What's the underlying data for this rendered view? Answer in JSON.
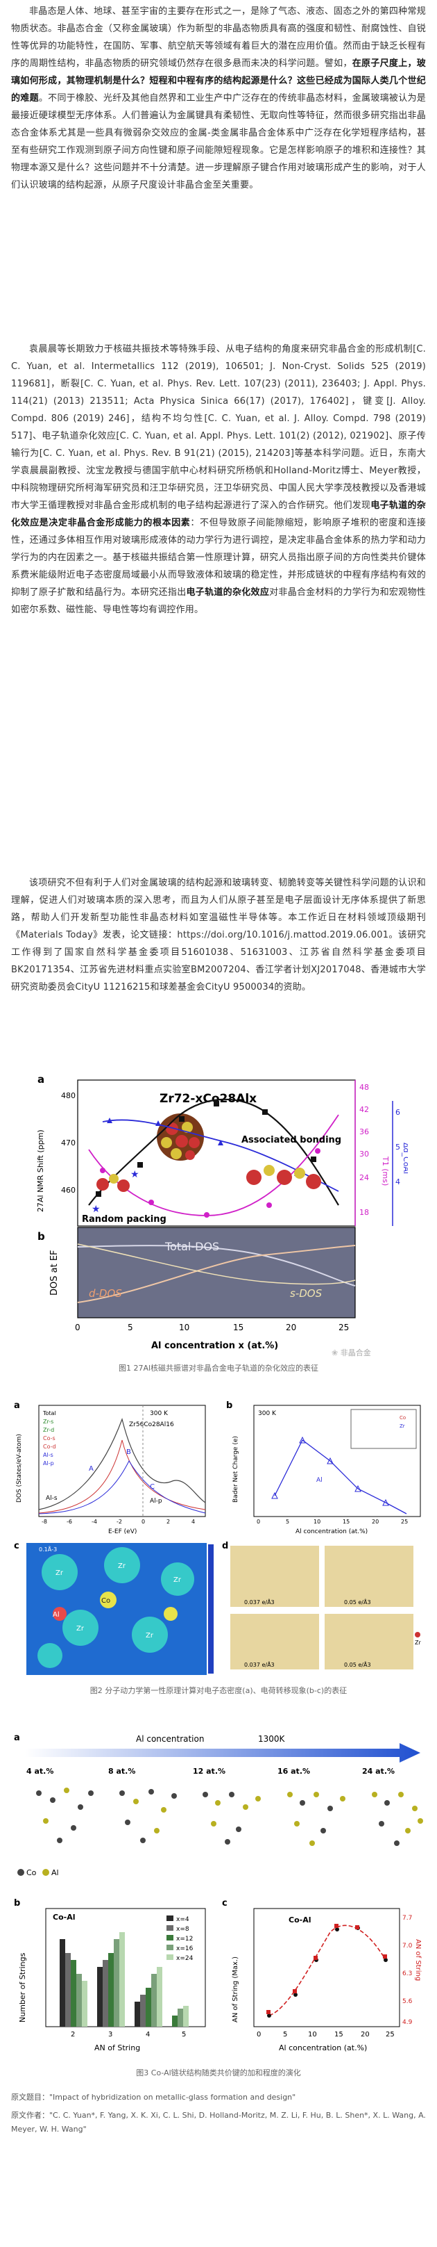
{
  "article": {
    "paragraphs": [
      [
        "非晶态是人体、地球、甚至宇宙的主要存在形式之一，是除了气态、液态、固态之外的第四种常规物质状态。非晶态合金（又称金属玻璃）作为新型的非晶态物质具有高的强度和韧性、耐腐蚀性、自锐性等优异的功能特性，在国防、军事、航空航天等领域有着巨大的潜在应用价值。然而由于缺乏长程有序的周期性结构，非晶态物质的研究领域仍然存在很多悬而未决的科学问题。譬如，",
        "在原子尺度上，玻璃如何形成，其物理机制是什么？短程和中程有序的结构起源是什么？这些已经成为国际人类几个世纪的难题",
        "。不同于橡胶、光纤及其他自然界和工业生产中广泛存在的传统非晶态材料，金属玻璃被认为是最接近硬球模型无序体系。人们普遍认为金属键具有柔韧性、无取向性等特征，然而很多研究指出非晶态合金体系尤其是一些具有微弱杂交效应的金属-类金属非晶合金体系中广泛存在化学短程序结构，甚至有些研究工作观测到原子间方向性键和原子间能隙短程现象。它是怎样影响原子的堆积和连接性？其物理本源又是什么？这些问题并不十分清楚。进一步理解原子键合作用对玻璃形成产生的影响，对于人们认识玻璃的结构起源，从原子尺度设计非晶合金至关重要。"
      ],
      [
        "袁晨晨等长期致力于核磁共振技术等特殊手段、从电子结构的角度来研究非晶合金的形成机制[C. C. Yuan, et al. Intermetallics 112 (2019), 106501; J. Non-Cryst. Solids 525 (2019) 119681]，断裂[C. C. Yuan, et al. Phys. Rev. Lett. 107(23) (2011), 236403; J. Appl. Phys. 114(21) (2013) 213511; Acta Physica Sinica 66(17) (2017), 176402]，键变[J. Alloy. Compd. 806 (2019) 246]，结构不均匀性[C. C. Yuan, et al. J. Alloy. Compd. 798 (2019) 517]、电子轨道杂化效应[C. C. Yuan, et al. Appl. Phys. Lett. 101(2) (2012), 021902]、原子传输行为[C. C. Yuan, et al. Phys. Rev. B 91(21) (2015), 214203]等基本科学问题。近日，东南大学袁晨晨副教授、沈宝龙教授与德国宇航中心材料研究所杨帆和Holland-Moritz博士、Meyer教授，中科院物理研究所柯海军研究员和汪卫华研究员，汪卫华研究员、中国人民大学李茂枝教授以及香港城市大学王循理教授对非晶合金形成机制的电子结构起源进行了深入的合作研究。他们发现",
        "电子轨道的杂化效应是决定非晶合金形成能力的根本因素",
        "：不但导致原子间能隙缩短，影响原子堆积的密度和连接性，还通过多体相互作用对玻璃形成液体的动力学行为进行调控，是决定非晶合金体系的热力学和动力学行为的内在因素之一。基于核磁共振结合第一性原理计算，研究人员指出原子间的方向性类共价键体系费米能级附近电子态密度局域最小从而导致液体和玻璃的稳定性，并形成链状的中程有序结构有效的抑制了原子扩散和结晶行为。本研究还指出",
        "电子轨道的杂化效应",
        "对非晶合金材料的力学行为和宏观物性如密尔系数、磁性能、导电性等均有调控作用。"
      ],
      [
        "该项研究不但有利于人们对金属玻璃的结构起源和玻璃转变、韧脆转变等关键性科学问题的认识和理解，促进人们对玻璃本质的深入思考，而且为人们从原子甚至是电子层面设计无序体系提供了新思路，帮助人们开发新型功能性非晶态材料如室温磁性半导体等。本工作近日在材料领域顶级期刊《Materials Today》发表，论文链接：https://doi.org/10.1016/j.mattod.2019.06.001。该研究工作得到了国家自然科学基金委项目51601038、51631003、江苏省自然科学基金委项目BK20171354、江苏省先进材料重点实验室BM2007204、香江学者计划XJ2017048、香港城市大学研究资助委员会CityU 11216215和球差基金会CityU 9500034的资助。",
        "",
        ""
      ]
    ]
  },
  "figure1": {
    "panel_a_label": "a",
    "panel_b_label": "b",
    "inset_formula": "Zr72-xCo28Alx",
    "ylabel_left": "27Al NMR Shift (ppm)",
    "ylabel_right_t1": "T1 (ms)",
    "ylabel_right_dcoal": "Δd_CoAl",
    "annotation_assoc": "Associated bonding",
    "annotation_random": "Random packing",
    "dos_ylabel": "DOS at EF",
    "total_dos_label": "Total-DOS",
    "d_dos_label": "d-DOS",
    "s_dos_label": "s-DOS",
    "xlabel": "Al concentration x (at.%)",
    "caption_prefix": "图1",
    "caption_text": "27Al核磁共振谱对非晶合金电子轨道的杂化效应的表征",
    "watermark": "非晶合金"
  },
  "figure2": {
    "panel_labels": [
      "a",
      "b",
      "c",
      "d"
    ],
    "legend_a": [
      "Total",
      "Zr-s",
      "Zr-d",
      "Co-s",
      "Co-d",
      "Al-s",
      "Al-p"
    ],
    "dos_ylabel": "DOS (States/eV-atom)",
    "dos_xlabel": "E-EF (eV)",
    "temp_label": "300 K",
    "composition": "Zr56Co28Al16",
    "al_s_label": "Al-s",
    "al_p_label": "Al-p",
    "peak_labels": [
      "A",
      "B",
      "C"
    ],
    "bader_ylabel": "Bader Net Charge (e)",
    "bader_xlabel": "Al concentration (at.%)",
    "bader_series": "Al",
    "inset_legend": [
      "Co",
      "Zr"
    ],
    "colorbar_top": "0.1Å-3",
    "colorbar_bottom": "0",
    "atom_labels": [
      "Zr",
      "Co",
      "Al"
    ],
    "density_labels": [
      "0.037 e/Å3",
      "0.05 e/Å3",
      "0.037 e/Å3",
      "0.05 e/Å3"
    ],
    "legend_d": [
      "Zr",
      "Co",
      "Al"
    ],
    "caption_text": "图2  分子动力学第一性原理计算对电子态密度(a)、电荷转移现象(b-c)的表征"
  },
  "figure3": {
    "panel_a_label": "a",
    "arrow_label": "Al concentration",
    "temperature": "1300K",
    "concentrations": [
      "4 at.%",
      "8 at.%",
      "12 at.%",
      "16 at.%",
      "24 at.%"
    ],
    "legend": [
      "Co",
      "Al"
    ],
    "panel_b_label": "b",
    "panel_b_title": "Co-Al",
    "panel_b_ylabel": "Number of Strings",
    "panel_b_xlabel": "AN of String",
    "panel_b_legend": [
      "x=4",
      "x=8",
      "x=12",
      "x=16",
      "x=24"
    ],
    "panel_c_label": "c",
    "panel_c_title": "Co-Al",
    "panel_c_ylabel": "AN of String (Max.)",
    "panel_c_ylabel_right": "AN of String",
    "panel_c_xlabel": "Al concentration (at.%)",
    "caption_text": "图3  Co-Al链状结构随类共价键的加和程度的演化"
  },
  "footer": {
    "title_label": "原文题目：",
    "title": "\"Impact of hybridization on metallic-glass formation and design\"",
    "authors_label": "原文作者：",
    "authors": "\"C. C. Yuan*, F. Yang, X. K. Xi, C. L. Shi, D. Holland-Moritz, M. Z. Li, F. Hu, B. L. Shen*, X. L. Wang, A. Meyer, W. H. Wang\""
  },
  "colors": {
    "text": "#333333",
    "bold": "#1a1a1a",
    "caption": "#666666",
    "dos_bg": "#6b6f88",
    "nmr_black": "#111111",
    "t1_magenta": "#d020c8",
    "dcoal_blue": "#2b2bd8",
    "co_atom": "#c82828",
    "al_atom": "#b8b020"
  }
}
